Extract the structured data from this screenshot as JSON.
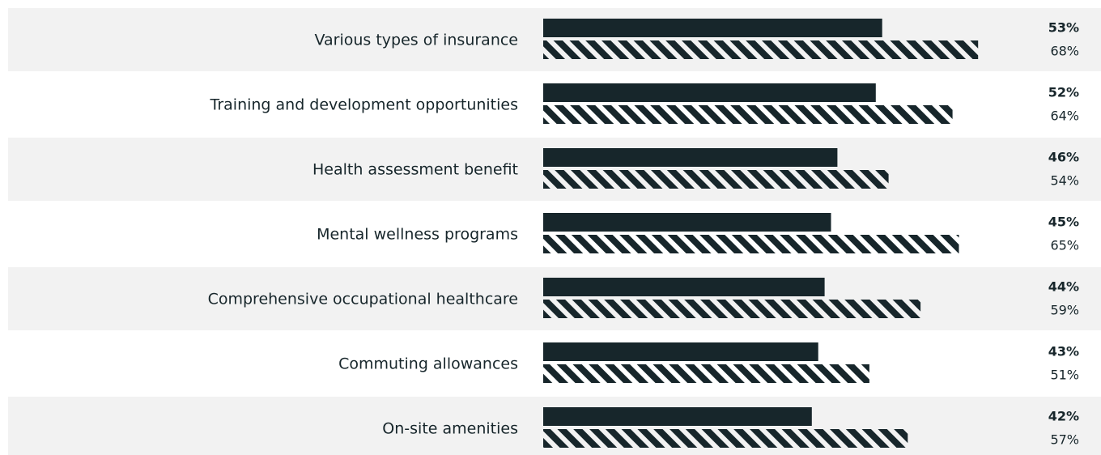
{
  "chart_data": {
    "type": "bar",
    "orientation": "horizontal",
    "categories": [
      "Various types of insurance",
      "Training and development opportunities",
      "Health assessment benefit",
      "Mental wellness programs",
      "Comprehensive occupational healthcare",
      "Commuting allowances",
      "On-site amenities"
    ],
    "series": [
      {
        "color": "#17262b",
        "values": [
          53,
          52,
          46,
          45,
          44,
          43,
          42
        ],
        "value_labels": [
          "53%",
          "52%",
          "46%",
          "45%",
          "44%",
          "43%",
          "42%"
        ]
      },
      {
        "color": "#17262b",
        "pattern": "hatch",
        "values": [
          68,
          64,
          54,
          65,
          59,
          51,
          57
        ],
        "value_labels": [
          "68%",
          "64%",
          "54%",
          "65%",
          "59%",
          "51%",
          "57%"
        ]
      }
    ]
  }
}
